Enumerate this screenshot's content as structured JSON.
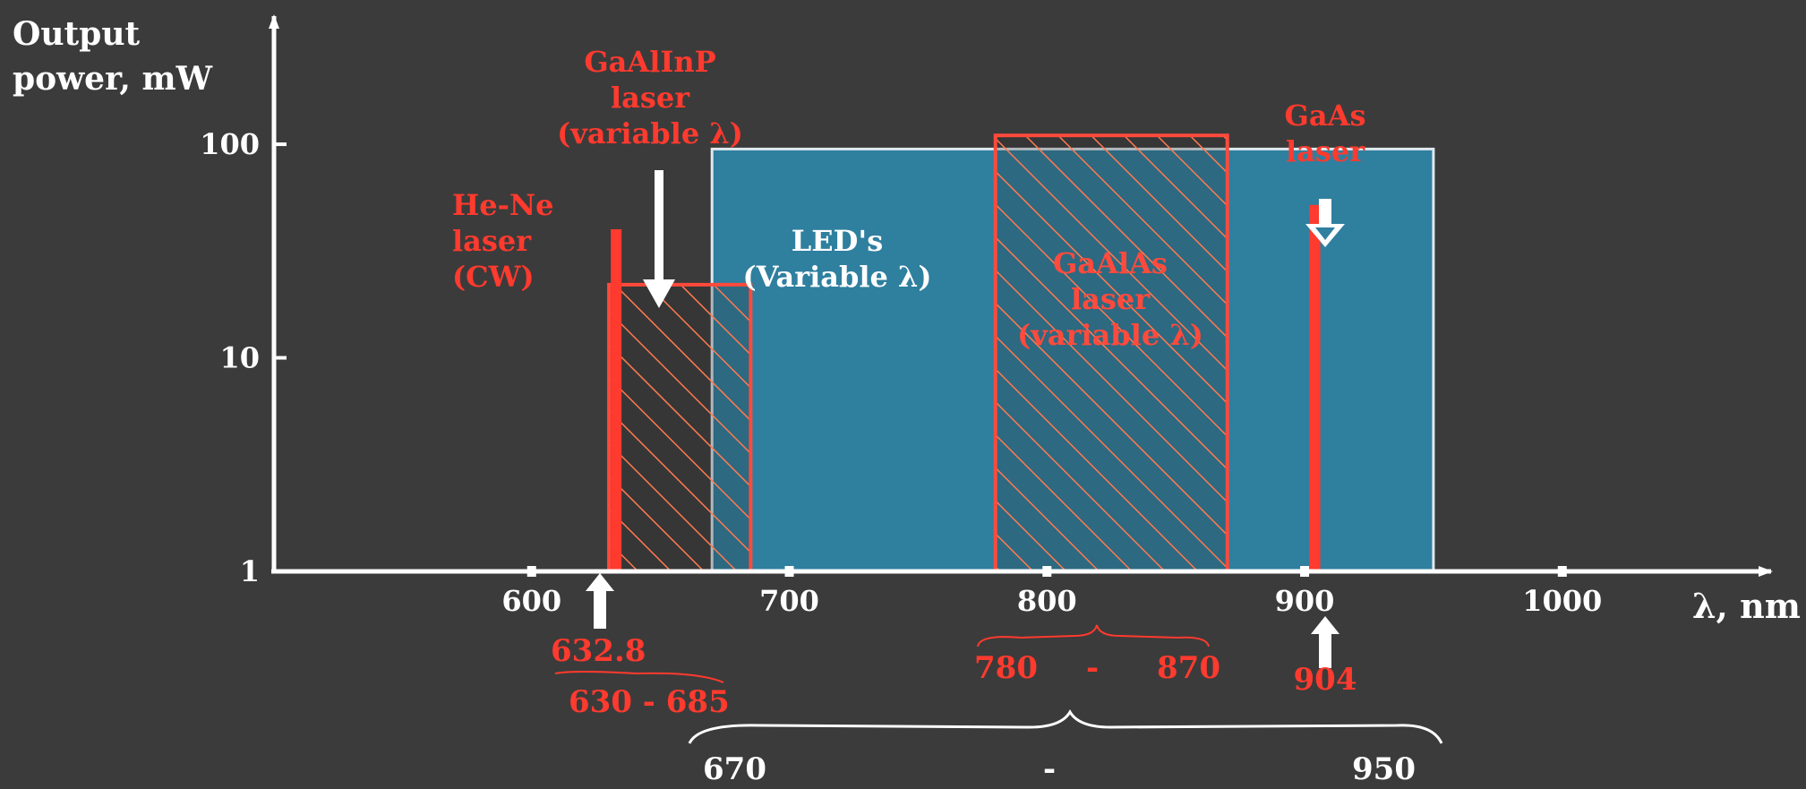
{
  "chart_data": {
    "type": "bar",
    "title": "",
    "ylabel": [
      "Output",
      "power, mW"
    ],
    "xlabel": "λ, nm",
    "xlim": [
      500,
      1080
    ],
    "ylim_log10": [
      0,
      2.6
    ],
    "yscale": "log",
    "x_ticks": [
      "600",
      "700",
      "800",
      "900",
      "1000"
    ],
    "y_ticks": [
      "1",
      "10",
      "100"
    ],
    "grid": false,
    "series": [
      {
        "name": "LED's (Variable λ)",
        "label": [
          "LED's",
          "(Variable λ)"
        ],
        "x_start": 670,
        "x_end": 950,
        "y_max": 95,
        "color": "#2f7f9f",
        "style": "solid"
      },
      {
        "name": "GaAlInP laser (variable λ)",
        "label": [
          "GaAlInP",
          "laser",
          "(variable λ)"
        ],
        "x_start": 630,
        "x_end": 685,
        "y_max": 22,
        "color": "#ff4a3c",
        "style": "hatched"
      },
      {
        "name": "GaAlAs laser (variable λ)",
        "label": [
          "GaAlAs",
          "laser",
          "(variable λ)"
        ],
        "x_start": 780,
        "x_end": 870,
        "y_max": 110,
        "color": "#ff4a3c",
        "style": "hatched"
      },
      {
        "name": "He-Ne laser (CW)",
        "label": [
          "He-Ne",
          "laser",
          "(CW)"
        ],
        "x": 632.8,
        "y_max": 40,
        "color": "#ff3a2e",
        "style": "line"
      },
      {
        "name": "GaAs laser",
        "label": [
          "GaAs",
          "laser"
        ],
        "x": 904,
        "y_max": 52,
        "color": "#ff3a2e",
        "style": "line"
      }
    ],
    "annotations": {
      "hene_wavelength": "632.8",
      "gaalinp_range": "630 - 685",
      "gaalas_range": [
        "780",
        "-",
        "870"
      ],
      "gaas_wavelength": "904",
      "led_range": [
        "670",
        "-",
        "950"
      ]
    }
  }
}
